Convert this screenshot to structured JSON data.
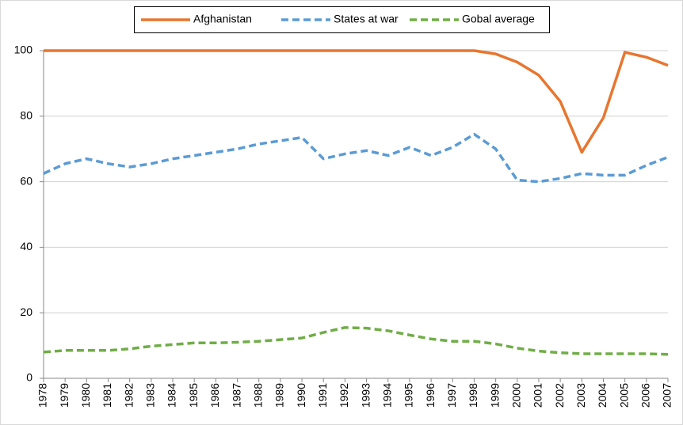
{
  "chart_data": {
    "type": "line",
    "x": [
      1978,
      1979,
      1980,
      1981,
      1982,
      1983,
      1984,
      1985,
      1986,
      1987,
      1988,
      1989,
      1990,
      1991,
      1992,
      1993,
      1994,
      1995,
      1996,
      1997,
      1998,
      1999,
      2000,
      2001,
      2002,
      2003,
      2004,
      2005,
      2006,
      2007
    ],
    "xlim": [
      1978,
      2007
    ],
    "xticks": [
      1978,
      1979,
      1980,
      1981,
      1982,
      1983,
      1984,
      1985,
      1986,
      1987,
      1988,
      1989,
      1990,
      1991,
      1992,
      1993,
      1994,
      1995,
      1996,
      1997,
      1998,
      1999,
      2000,
      2001,
      2002,
      2003,
      2004,
      2005,
      2006,
      2007
    ],
    "ylim": [
      0,
      100
    ],
    "yticks": [
      0,
      20,
      40,
      60,
      80,
      100
    ],
    "grid": true,
    "legend": "top",
    "series": [
      {
        "name": "Afghanistan",
        "color": "#e8762f",
        "dash": "solid",
        "values": [
          100,
          100,
          100,
          100,
          100,
          100,
          100,
          100,
          100,
          100,
          100,
          100,
          100,
          100,
          100,
          100,
          100,
          100,
          100,
          100,
          100,
          99,
          96.5,
          92.5,
          84.5,
          69,
          79.5,
          99.5,
          98,
          95.5
        ]
      },
      {
        "name": "States at war",
        "color": "#5b9bd5",
        "dash": "dashed",
        "values": [
          62.5,
          65.5,
          67,
          65.5,
          64.5,
          65.5,
          67,
          68,
          69,
          70,
          71.5,
          72.5,
          73.5,
          67,
          68.5,
          69.5,
          68,
          70.5,
          68,
          70.5,
          74.5,
          70,
          60.5,
          60,
          61,
          62.5,
          62,
          62,
          65,
          67.5
        ]
      },
      {
        "name": "Gobal average",
        "color": "#70ad47",
        "dash": "dashed",
        "values": [
          8,
          8.5,
          8.5,
          8.5,
          9,
          9.8,
          10.3,
          10.8,
          10.8,
          11,
          11.3,
          11.8,
          12.3,
          14,
          15.5,
          15.3,
          14.5,
          13.2,
          12,
          11.3,
          11.3,
          10.5,
          9.2,
          8.3,
          7.8,
          7.5,
          7.5,
          7.5,
          7.5,
          7.3
        ]
      }
    ]
  }
}
